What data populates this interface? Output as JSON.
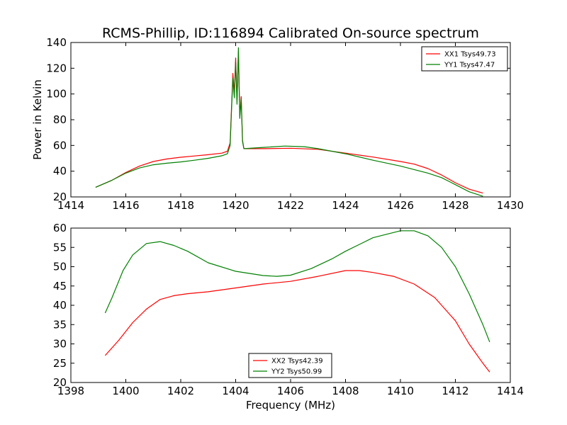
{
  "title": "RCMS-Phillip, ID:116894 Calibrated On-source spectrum",
  "chart_data": [
    {
      "type": "line",
      "ylabel": "Power in Kelvin",
      "xlabel": "",
      "xlim": [
        1414,
        1430
      ],
      "ylim": [
        20,
        140
      ],
      "xticks": [
        "1414",
        "1416",
        "1418",
        "1420",
        "1422",
        "1424",
        "1426",
        "1428",
        "1430"
      ],
      "yticks": [
        "20",
        "40",
        "60",
        "80",
        "100",
        "120",
        "140"
      ],
      "legend_position": "top-right",
      "series": [
        {
          "name": "XX1 Tsys49.73",
          "color": "#ff0000",
          "points": [
            [
              1414.9,
              27.5
            ],
            [
              1415.5,
              33
            ],
            [
              1416,
              39
            ],
            [
              1416.5,
              44
            ],
            [
              1417,
              47.5
            ],
            [
              1417.5,
              49.5
            ],
            [
              1418,
              50.8
            ],
            [
              1418.5,
              51.8
            ],
            [
              1419,
              52.8
            ],
            [
              1419.5,
              54
            ],
            [
              1419.7,
              55.5
            ],
            [
              1419.8,
              62
            ],
            [
              1419.85,
              90
            ],
            [
              1419.9,
              116
            ],
            [
              1419.95,
              100
            ],
            [
              1420,
              128
            ],
            [
              1420.05,
              95
            ],
            [
              1420.1,
              133
            ],
            [
              1420.15,
              83
            ],
            [
              1420.2,
              98
            ],
            [
              1420.25,
              64
            ],
            [
              1420.3,
              57.5
            ],
            [
              1421,
              57.5
            ],
            [
              1422,
              57.8
            ],
            [
              1423,
              57
            ],
            [
              1424,
              54
            ],
            [
              1425,
              51
            ],
            [
              1426,
              47.5
            ],
            [
              1426.5,
              45.5
            ],
            [
              1427,
              42
            ],
            [
              1427.5,
              37
            ],
            [
              1428,
              31
            ],
            [
              1428.5,
              26
            ],
            [
              1429,
              23
            ]
          ]
        },
        {
          "name": "YY1 Tsys47.47",
          "color": "#008000",
          "points": [
            [
              1414.9,
              27.5
            ],
            [
              1415.5,
              33
            ],
            [
              1416,
              38.5
            ],
            [
              1416.5,
              42.5
            ],
            [
              1417,
              45
            ],
            [
              1417.5,
              46.2
            ],
            [
              1418,
              47.2
            ],
            [
              1418.5,
              48.5
            ],
            [
              1419,
              50
            ],
            [
              1419.5,
              52
            ],
            [
              1419.7,
              53.5
            ],
            [
              1419.8,
              60
            ],
            [
              1419.85,
              88
            ],
            [
              1419.9,
              112
            ],
            [
              1419.95,
              97
            ],
            [
              1420,
              125
            ],
            [
              1420.05,
              92
            ],
            [
              1420.1,
              136
            ],
            [
              1420.15,
              81
            ],
            [
              1420.2,
              96
            ],
            [
              1420.25,
              63
            ],
            [
              1420.3,
              57.5
            ],
            [
              1421,
              58.5
            ],
            [
              1421.8,
              59.5
            ],
            [
              1422.5,
              59
            ],
            [
              1423,
              57.5
            ],
            [
              1424,
              53.5
            ],
            [
              1425,
              48.5
            ],
            [
              1426,
              44
            ],
            [
              1427,
              38.5
            ],
            [
              1427.5,
              35
            ],
            [
              1428,
              29.5
            ],
            [
              1428.5,
              24
            ],
            [
              1429,
              20.5
            ]
          ]
        }
      ]
    },
    {
      "type": "line",
      "ylabel": "",
      "xlabel": "Frequency (MHz)",
      "xlim": [
        1398,
        1414
      ],
      "ylim": [
        20,
        60
      ],
      "xticks": [
        "1398",
        "1400",
        "1402",
        "1404",
        "1406",
        "1408",
        "1410",
        "1412",
        "1414"
      ],
      "yticks": [
        "20",
        "25",
        "30",
        "35",
        "40",
        "45",
        "50",
        "55",
        "60"
      ],
      "legend_position": "bottom-center",
      "series": [
        {
          "name": "XX2 Tsys42.39",
          "color": "#ff0000",
          "points": [
            [
              1399.25,
              27
            ],
            [
              1399.75,
              31
            ],
            [
              1400.25,
              35.5
            ],
            [
              1400.75,
              39
            ],
            [
              1401.25,
              41.5
            ],
            [
              1401.75,
              42.5
            ],
            [
              1402.25,
              43
            ],
            [
              1403,
              43.5
            ],
            [
              1404,
              44.5
            ],
            [
              1405,
              45.5
            ],
            [
              1406,
              46.2
            ],
            [
              1407,
              47.5
            ],
            [
              1408,
              49
            ],
            [
              1408.5,
              49
            ],
            [
              1409,
              48.5
            ],
            [
              1409.75,
              47.5
            ],
            [
              1410.5,
              45.5
            ],
            [
              1411.25,
              42
            ],
            [
              1412,
              36
            ],
            [
              1412.5,
              30
            ],
            [
              1413,
              25
            ],
            [
              1413.25,
              22.7
            ]
          ]
        },
        {
          "name": "YY2 Tsys50.99",
          "color": "#008000",
          "points": [
            [
              1399.25,
              38
            ],
            [
              1399.5,
              42
            ],
            [
              1399.9,
              49
            ],
            [
              1400.25,
              53
            ],
            [
              1400.75,
              56
            ],
            [
              1401.25,
              56.5
            ],
            [
              1401.75,
              55.5
            ],
            [
              1402.25,
              54
            ],
            [
              1403,
              51
            ],
            [
              1404,
              48.8
            ],
            [
              1405,
              47.7
            ],
            [
              1405.5,
              47.5
            ],
            [
              1406,
              47.8
            ],
            [
              1406.75,
              49.5
            ],
            [
              1407.5,
              52
            ],
            [
              1408,
              54
            ],
            [
              1409,
              57.5
            ],
            [
              1410,
              59.3
            ],
            [
              1410.5,
              59.3
            ],
            [
              1411,
              58
            ],
            [
              1411.5,
              55
            ],
            [
              1412,
              50
            ],
            [
              1412.5,
              43
            ],
            [
              1413,
              35
            ],
            [
              1413.25,
              30.5
            ]
          ]
        }
      ]
    }
  ]
}
